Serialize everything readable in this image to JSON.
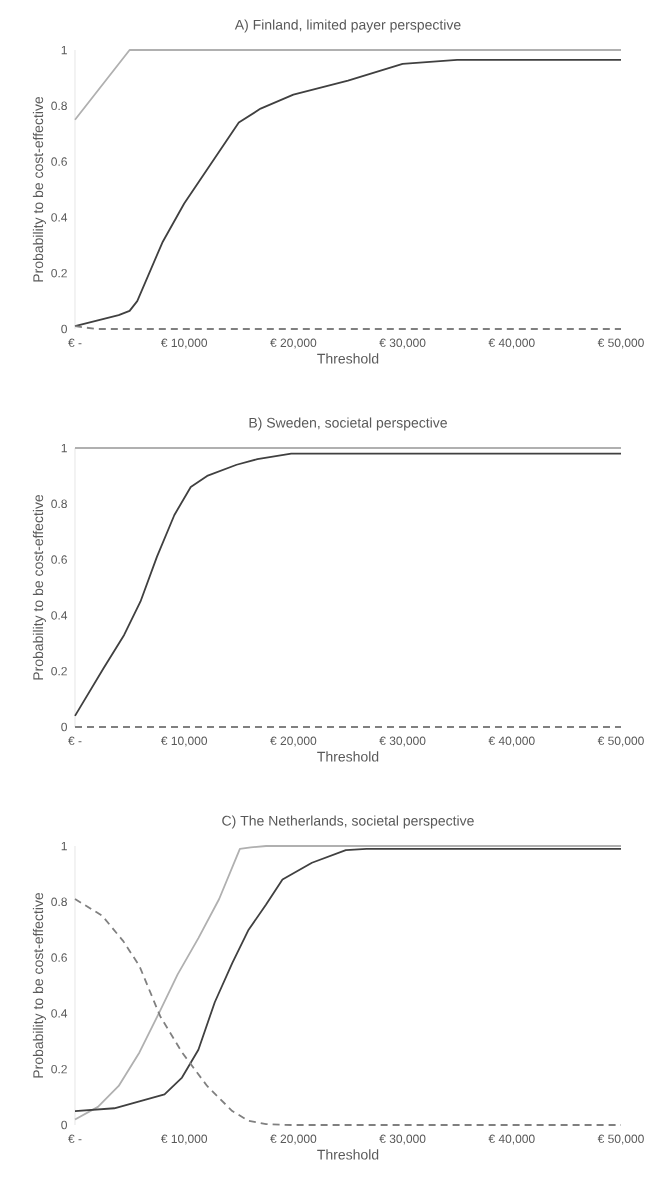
{
  "chart_data": [
    {
      "type": "line",
      "title": "A) Finland, limited payer perspective",
      "xlabel": "Threshold",
      "ylabel": "Probability to be cost-effective",
      "xlim": [
        0,
        50000
      ],
      "ylim": [
        0,
        1
      ],
      "xticks": [
        {
          "value": 0,
          "label": "€ -"
        },
        {
          "value": 10000,
          "label": "€ 10,000"
        },
        {
          "value": 20000,
          "label": "€ 20,000"
        },
        {
          "value": 30000,
          "label": "€ 30,000"
        },
        {
          "value": 40000,
          "label": "€ 40,000"
        },
        {
          "value": 50000,
          "label": "€ 50,000"
        }
      ],
      "yticks": [
        0,
        0.2,
        0.4,
        0.6,
        0.8,
        1
      ],
      "series": [
        {
          "color": "#b0b0b0",
          "line_style": "solid",
          "x": [
            0,
            5000,
            6000,
            50000
          ],
          "values": [
            0.75,
            1,
            1,
            1
          ]
        },
        {
          "color": "#404040",
          "line_style": "solid",
          "x": [
            0,
            2000,
            4000,
            5000,
            5700,
            8000,
            10000,
            15000,
            17000,
            20000,
            25000,
            30000,
            35000,
            50000
          ],
          "values": [
            0.01,
            0.03,
            0.05,
            0.065,
            0.1,
            0.31,
            0.45,
            0.74,
            0.79,
            0.84,
            0.89,
            0.95,
            0.965,
            0.965
          ]
        },
        {
          "color": "#808080",
          "line_style": "dashed",
          "x": [
            0,
            2000,
            50000
          ],
          "values": [
            0.01,
            0,
            0
          ]
        }
      ]
    },
    {
      "type": "line",
      "title": "B) Sweden, societal perspective",
      "xlabel": "Threshold",
      "ylabel": "Probability to be cost-effective",
      "xlim": [
        0,
        50000
      ],
      "ylim": [
        0,
        1
      ],
      "xticks": [
        {
          "value": 0,
          "label": "€ -"
        },
        {
          "value": 10000,
          "label": "€ 10,000"
        },
        {
          "value": 20000,
          "label": "€ 20,000"
        },
        {
          "value": 30000,
          "label": "€ 30,000"
        },
        {
          "value": 40000,
          "label": "€ 40,000"
        },
        {
          "value": 50000,
          "label": "€ 50,000"
        }
      ],
      "yticks": [
        0,
        0.2,
        0.4,
        0.6,
        0.8,
        1
      ],
      "series": [
        {
          "color": "#b0b0b0",
          "line_style": "solid",
          "x": [
            0,
            50000
          ],
          "values": [
            1,
            1
          ]
        },
        {
          "color": "#404040",
          "line_style": "solid",
          "x": [
            0,
            2600,
            4500,
            6000,
            7500,
            9100,
            10600,
            12100,
            14800,
            16700,
            19800,
            23600,
            50000
          ],
          "values": [
            0.04,
            0.21,
            0.33,
            0.45,
            0.61,
            0.76,
            0.86,
            0.9,
            0.94,
            0.96,
            0.98,
            0.98,
            0.98
          ]
        },
        {
          "color": "#808080",
          "line_style": "dashed",
          "x": [
            0,
            50000
          ],
          "values": [
            0,
            0
          ]
        }
      ]
    },
    {
      "type": "line",
      "title": "C) The Netherlands, societal perspective",
      "xlabel": "Threshold",
      "ylabel": "Probability to be cost-effective",
      "xlim": [
        0,
        50000
      ],
      "ylim": [
        0,
        1
      ],
      "xticks": [
        {
          "value": 0,
          "label": "€ -"
        },
        {
          "value": 10000,
          "label": "€ 10,000"
        },
        {
          "value": 20000,
          "label": "€ 20,000"
        },
        {
          "value": 30000,
          "label": "€ 30,000"
        },
        {
          "value": 40000,
          "label": "€ 40,000"
        },
        {
          "value": 50000,
          "label": "€ 50,000"
        }
      ],
      "yticks": [
        0,
        0.2,
        0.4,
        0.6,
        0.8,
        1
      ],
      "series": [
        {
          "color": "#b0b0b0",
          "line_style": "solid",
          "x": [
            0,
            2100,
            4000,
            5900,
            7800,
            9400,
            11300,
            13200,
            15100,
            16100,
            17500,
            50000
          ],
          "values": [
            0.02,
            0.065,
            0.14,
            0.26,
            0.41,
            0.54,
            0.67,
            0.81,
            0.99,
            0.995,
            1,
            1
          ]
        },
        {
          "color": "#404040",
          "line_style": "solid",
          "x": [
            0,
            3600,
            5900,
            8200,
            9800,
            11300,
            12800,
            14400,
            15900,
            17500,
            19000,
            21700,
            24800,
            26700,
            50000
          ],
          "values": [
            0.05,
            0.06,
            0.085,
            0.11,
            0.17,
            0.27,
            0.44,
            0.58,
            0.7,
            0.79,
            0.88,
            0.94,
            0.985,
            0.99,
            0.99
          ]
        },
        {
          "color": "#808080",
          "line_style": "dashed",
          "x": [
            0,
            2500,
            4400,
            5900,
            7800,
            9800,
            12100,
            14400,
            15900,
            17500,
            19800,
            50000
          ],
          "values": [
            0.81,
            0.75,
            0.66,
            0.57,
            0.39,
            0.26,
            0.14,
            0.05,
            0.015,
            0.003,
            0,
            0
          ]
        }
      ]
    }
  ]
}
